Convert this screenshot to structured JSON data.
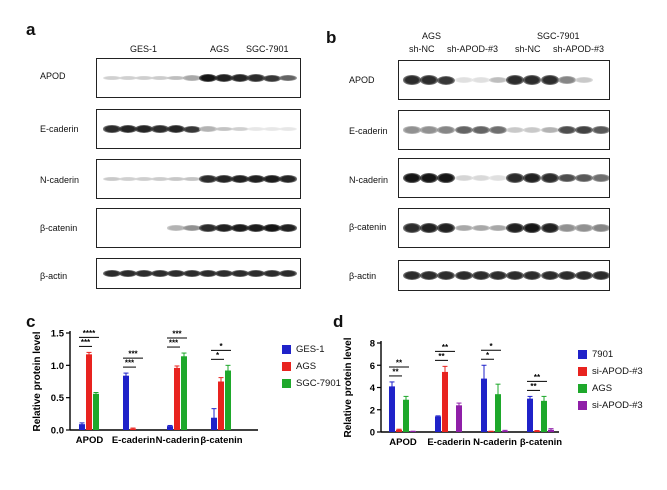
{
  "figure": {
    "panels": [
      "a",
      "b",
      "c",
      "d"
    ],
    "panel_a": {
      "group_labels": [
        "GES-1",
        "AGS",
        "SGC-7901"
      ],
      "blots": [
        "APOD",
        "E-caderin",
        "N-caderin",
        "β-catenin",
        "β-actin"
      ],
      "intensity": {
        "APOD": [
          0.12,
          0.12,
          0.13,
          0.14,
          0.2,
          0.3,
          0.95,
          0.9,
          0.88,
          0.85,
          0.8,
          0.6
        ],
        "E-caderin": [
          0.85,
          0.88,
          0.88,
          0.85,
          0.88,
          0.8,
          0.25,
          0.18,
          0.12,
          0.02,
          0.02,
          0.02
        ],
        "N-caderin": [
          0.15,
          0.12,
          0.13,
          0.14,
          0.16,
          0.18,
          0.85,
          0.88,
          0.9,
          0.9,
          0.92,
          0.88
        ],
        "β-catenin": [
          0.0,
          0.0,
          0.0,
          0.0,
          0.25,
          0.4,
          0.85,
          0.9,
          0.92,
          0.92,
          0.95,
          0.9
        ],
        "β-actin": [
          0.85,
          0.85,
          0.85,
          0.85,
          0.85,
          0.85,
          0.85,
          0.85,
          0.85,
          0.85,
          0.85,
          0.85
        ]
      }
    },
    "panel_b": {
      "cell_lines": [
        "AGS",
        "SGC-7901"
      ],
      "sub_labels": [
        "sh-NC",
        "sh-APOD-#3",
        "sh-NC",
        "sh-APOD-#3"
      ],
      "blots": [
        "APOD",
        "E-caderin",
        "N-caderin",
        "β-catenin",
        "β-actin"
      ],
      "intensity": {
        "APOD": [
          0.85,
          0.85,
          0.8,
          0.05,
          0.05,
          0.2,
          0.85,
          0.85,
          0.85,
          0.45,
          0.15,
          0.0
        ],
        "E-caderin": [
          0.4,
          0.4,
          0.45,
          0.6,
          0.6,
          0.55,
          0.15,
          0.15,
          0.25,
          0.7,
          0.75,
          0.65
        ],
        "N-caderin": [
          0.95,
          0.95,
          0.95,
          0.1,
          0.08,
          0.05,
          0.85,
          0.9,
          0.85,
          0.7,
          0.65,
          0.55
        ],
        "β-catenin": [
          0.85,
          0.9,
          0.9,
          0.3,
          0.3,
          0.3,
          0.9,
          0.95,
          0.9,
          0.4,
          0.4,
          0.45
        ],
        "β-actin": [
          0.85,
          0.85,
          0.85,
          0.85,
          0.85,
          0.85,
          0.85,
          0.85,
          0.85,
          0.85,
          0.85,
          0.85
        ]
      }
    }
  },
  "chart_data": [
    {
      "type": "bar",
      "panel": "c",
      "ylabel": "Relative protein level",
      "ylim": [
        0,
        1.5
      ],
      "yticks": [
        "0.0",
        "0.5",
        "1.0",
        "1.5"
      ],
      "categories": [
        "APOD",
        "E-caderin",
        "N-caderin",
        "β-catenin"
      ],
      "series": [
        {
          "name": "GES-1",
          "color": "#1f22c9",
          "values": [
            0.09,
            0.84,
            0.06,
            0.19
          ],
          "errors": [
            0.02,
            0.04,
            0.01,
            0.14
          ]
        },
        {
          "name": "AGS",
          "color": "#e8231f",
          "values": [
            1.17,
            0.02,
            0.96,
            0.75
          ],
          "errors": [
            0.03,
            0.01,
            0.03,
            0.06
          ]
        },
        {
          "name": "SGC-7901",
          "color": "#1ea82b",
          "values": [
            0.56,
            0.0,
            1.14,
            0.92
          ],
          "errors": [
            0.02,
            0.0,
            0.05,
            0.08
          ]
        }
      ],
      "significance": [
        {
          "category": "APOD",
          "labels": [
            "***",
            "****"
          ]
        },
        {
          "category": "E-caderin",
          "labels": [
            "***",
            "***"
          ]
        },
        {
          "category": "N-caderin",
          "labels": [
            "***",
            "***"
          ]
        },
        {
          "category": "β-catenin",
          "labels": [
            "*",
            "*"
          ]
        }
      ],
      "legend": "right"
    },
    {
      "type": "bar",
      "panel": "d",
      "ylabel": "Relative protein level",
      "ylim": [
        0,
        8
      ],
      "yticks": [
        "0",
        "2",
        "4",
        "6",
        "8"
      ],
      "categories": [
        "APOD",
        "E-caderin",
        "N-caderin",
        "β-catenin"
      ],
      "series": [
        {
          "name": "7901",
          "color": "#1f22c9",
          "values": [
            4.1,
            1.4,
            4.8,
            3.0
          ],
          "errors": [
            0.4,
            0.05,
            1.2,
            0.2
          ]
        },
        {
          "name": "si-APOD-#3",
          "color": "#e8231f",
          "values": [
            0.2,
            5.4,
            0.05,
            0.1
          ],
          "errors": [
            0.05,
            0.5,
            0.02,
            0.03
          ]
        },
        {
          "name": "AGS",
          "color": "#1ea82b",
          "values": [
            2.9,
            0.0,
            3.4,
            2.8
          ],
          "errors": [
            0.3,
            0.0,
            0.9,
            0.4
          ]
        },
        {
          "name": "si-APOD-#3",
          "color": "#8f1fa8",
          "values": [
            0.05,
            2.4,
            0.1,
            0.2
          ],
          "errors": [
            0.02,
            0.2,
            0.05,
            0.1
          ]
        }
      ],
      "significance": [
        {
          "category": "APOD",
          "labels": [
            "**",
            "**"
          ]
        },
        {
          "category": "E-caderin",
          "labels": [
            "**",
            "**"
          ]
        },
        {
          "category": "N-caderin",
          "labels": [
            "*",
            "*"
          ]
        },
        {
          "category": "β-catenin",
          "labels": [
            "**",
            "**"
          ]
        }
      ],
      "legend": "right"
    }
  ]
}
